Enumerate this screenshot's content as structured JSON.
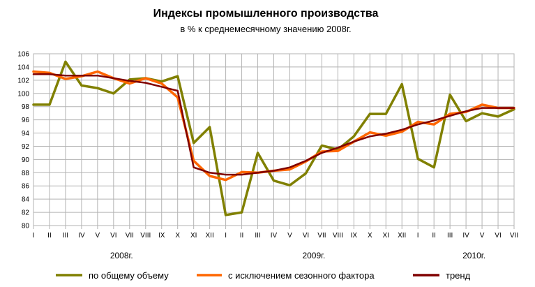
{
  "chart_data": {
    "type": "line",
    "title": "Индексы промышленного производства",
    "subtitle": "в % к среднемесячному значению 2008г.",
    "ylim": [
      80,
      106
    ],
    "yticks": [
      80,
      82,
      84,
      86,
      88,
      90,
      92,
      94,
      96,
      98,
      100,
      102,
      104,
      106
    ],
    "categories": [
      "I",
      "II",
      "III",
      "IV",
      "V",
      "VI",
      "VII",
      "VIII",
      "IX",
      "X",
      "XI",
      "XII",
      "I",
      "II",
      "III",
      "IV",
      "V",
      "VI",
      "VII",
      "VIII",
      "IX",
      "X",
      "XI",
      "XII",
      "I",
      "II",
      "III",
      "IV",
      "V",
      "VI",
      "VII"
    ],
    "year_labels": [
      {
        "label": "2008г.",
        "at_index": 5.5
      },
      {
        "label": "2009г.",
        "at_index": 17.5
      },
      {
        "label": "2010г.",
        "at_index": 27.5
      }
    ],
    "grid": true,
    "legend_position": "bottom",
    "series": [
      {
        "name": "по общему объему",
        "color": "#808000",
        "values": [
          98.3,
          98.3,
          104.8,
          101.2,
          100.8,
          100.0,
          102.1,
          102.3,
          101.8,
          102.6,
          92.5,
          94.9,
          81.6,
          82.0,
          91.0,
          86.8,
          86.1,
          87.9,
          92.1,
          91.5,
          93.5,
          96.9,
          96.9,
          101.4,
          90.1,
          88.8,
          99.8,
          95.8,
          97.0,
          96.5,
          97.6
        ]
      },
      {
        "name": "с исключением сезонного фактора",
        "color": "#ff6600",
        "values": [
          103.3,
          103.1,
          102.2,
          102.6,
          103.3,
          102.3,
          101.5,
          102.3,
          101.5,
          99.4,
          89.8,
          87.5,
          86.9,
          88.1,
          88.0,
          88.3,
          88.5,
          89.7,
          91.2,
          91.3,
          92.7,
          94.1,
          93.6,
          94.2,
          95.7,
          95.3,
          96.9,
          97.2,
          98.3,
          97.8,
          97.8
        ]
      },
      {
        "name": "тренд",
        "color": "#800000",
        "values": [
          102.9,
          102.9,
          102.7,
          102.7,
          102.7,
          102.3,
          101.9,
          101.6,
          101.0,
          100.4,
          88.8,
          88.0,
          87.7,
          87.7,
          88.0,
          88.3,
          88.8,
          89.8,
          91.0,
          91.8,
          92.7,
          93.5,
          93.9,
          94.5,
          95.3,
          95.9,
          96.6,
          97.3,
          97.8,
          97.8,
          97.8
        ]
      }
    ]
  }
}
